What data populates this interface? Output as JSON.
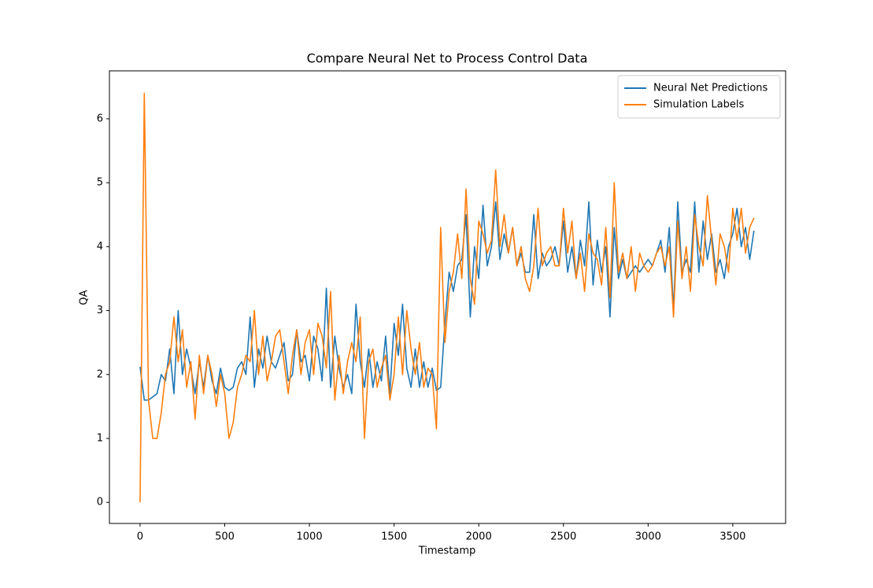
{
  "chart_data": {
    "type": "line",
    "title": "Compare Neural Net to Process Control Data",
    "x_label": "Timestamp",
    "y_label": "QA",
    "x": [
      0,
      25,
      50,
      75,
      100,
      125,
      150,
      175,
      200,
      225,
      250,
      275,
      300,
      325,
      350,
      375,
      400,
      425,
      450,
      475,
      500,
      525,
      550,
      575,
      600,
      625,
      650,
      675,
      700,
      725,
      750,
      775,
      800,
      825,
      850,
      875,
      900,
      925,
      950,
      975,
      1000,
      1025,
      1050,
      1075,
      1100,
      1125,
      1150,
      1175,
      1200,
      1225,
      1250,
      1275,
      1300,
      1325,
      1350,
      1375,
      1400,
      1425,
      1450,
      1475,
      1500,
      1525,
      1550,
      1575,
      1600,
      1625,
      1650,
      1675,
      1700,
      1725,
      1750,
      1775,
      1800,
      1825,
      1850,
      1875,
      1900,
      1925,
      1950,
      1975,
      2000,
      2025,
      2050,
      2075,
      2100,
      2125,
      2150,
      2175,
      2200,
      2225,
      2250,
      2275,
      2300,
      2325,
      2350,
      2375,
      2400,
      2425,
      2450,
      2475,
      2500,
      2525,
      2550,
      2575,
      2600,
      2625,
      2650,
      2675,
      2700,
      2725,
      2750,
      2775,
      2800,
      2825,
      2850,
      2875,
      2900,
      2925,
      2950,
      2975,
      3000,
      3025,
      3050,
      3075,
      3100,
      3125,
      3150,
      3175,
      3200,
      3225,
      3250,
      3275,
      3300,
      3325,
      3350,
      3375,
      3400,
      3425,
      3450,
      3475,
      3500,
      3525,
      3550,
      3575,
      3600,
      3625
    ],
    "series": [
      {
        "name": "Neural Net Predictions",
        "color": "#1f77b4",
        "values": [
          2.12,
          1.6,
          1.6,
          1.65,
          1.7,
          2.0,
          1.9,
          2.4,
          1.7,
          3.0,
          2.0,
          2.4,
          2.1,
          1.7,
          2.2,
          1.8,
          2.3,
          1.9,
          1.7,
          2.1,
          1.8,
          1.75,
          1.8,
          2.1,
          2.2,
          2.0,
          2.9,
          1.8,
          2.4,
          2.1,
          2.6,
          2.2,
          2.1,
          2.3,
          2.5,
          1.9,
          2.0,
          2.7,
          2.2,
          2.3,
          1.9,
          2.6,
          2.4,
          1.9,
          3.35,
          1.8,
          2.6,
          2.1,
          1.8,
          2.0,
          1.7,
          3.1,
          2.2,
          1.8,
          2.4,
          1.8,
          2.2,
          1.9,
          2.6,
          1.7,
          2.8,
          2.3,
          3.1,
          2.1,
          1.8,
          2.4,
          1.8,
          2.2,
          1.8,
          2.1,
          1.75,
          1.8,
          2.8,
          3.6,
          3.3,
          3.7,
          3.8,
          4.5,
          2.9,
          4.0,
          3.5,
          4.65,
          3.7,
          4.0,
          4.7,
          3.8,
          4.2,
          3.9,
          4.3,
          3.7,
          3.9,
          3.6,
          3.6,
          4.5,
          3.5,
          3.9,
          3.7,
          3.8,
          4.0,
          3.7,
          4.4,
          3.6,
          4.0,
          3.5,
          4.1,
          3.7,
          4.7,
          3.4,
          4.1,
          3.6,
          4.0,
          2.9,
          4.3,
          3.5,
          3.8,
          3.5,
          3.6,
          3.7,
          3.6,
          3.7,
          3.8,
          3.7,
          3.9,
          4.1,
          3.6,
          4.3,
          3.0,
          4.7,
          3.6,
          3.8,
          3.6,
          4.7,
          3.6,
          4.4,
          3.8,
          4.2,
          3.6,
          3.8,
          3.5,
          4.0,
          4.2,
          4.6,
          4.0,
          4.3,
          3.8,
          4.25
        ]
      },
      {
        "name": "Simulation Labels",
        "color": "#ff7f0e",
        "values": [
          0.0,
          6.4,
          1.6,
          1.0,
          1.0,
          1.4,
          2.0,
          2.2,
          2.9,
          2.2,
          2.7,
          1.8,
          2.2,
          1.3,
          2.3,
          1.7,
          2.3,
          2.0,
          1.5,
          2.0,
          1.7,
          1.0,
          1.25,
          1.8,
          2.0,
          2.3,
          2.2,
          3.0,
          2.0,
          2.6,
          1.9,
          2.2,
          2.6,
          2.7,
          2.2,
          1.7,
          2.3,
          2.7,
          2.0,
          2.5,
          2.7,
          2.0,
          2.8,
          2.6,
          2.1,
          3.3,
          1.6,
          2.3,
          1.7,
          2.2,
          2.5,
          2.2,
          2.9,
          1.0,
          2.2,
          2.4,
          1.8,
          2.1,
          2.3,
          1.6,
          2.0,
          2.9,
          2.0,
          3.0,
          2.4,
          2.0,
          2.5,
          1.8,
          2.1,
          2.0,
          1.15,
          4.3,
          2.5,
          3.3,
          3.6,
          4.2,
          3.5,
          4.9,
          3.5,
          3.1,
          4.4,
          4.2,
          3.9,
          4.1,
          5.2,
          4.0,
          4.5,
          3.9,
          4.3,
          3.7,
          4.0,
          3.5,
          3.3,
          3.7,
          4.6,
          3.7,
          3.9,
          4.0,
          3.7,
          3.7,
          4.6,
          3.9,
          4.4,
          3.5,
          3.9,
          3.3,
          4.2,
          3.9,
          3.8,
          3.4,
          4.3,
          3.2,
          5.0,
          3.6,
          3.9,
          3.5,
          4.0,
          3.3,
          3.9,
          3.7,
          3.6,
          3.7,
          3.9,
          4.0,
          3.7,
          4.0,
          2.9,
          4.4,
          3.5,
          4.0,
          3.3,
          4.5,
          4.0,
          3.7,
          4.8,
          4.1,
          3.4,
          4.2,
          4.0,
          3.6,
          4.6,
          4.1,
          4.6,
          3.9,
          4.3,
          4.45
        ]
      }
    ],
    "xlim": [
      -181,
      3812
    ],
    "ylim": [
      -0.33,
      6.75
    ],
    "xticks": [
      0,
      500,
      1000,
      1500,
      2000,
      2500,
      3000,
      3500
    ],
    "yticks": [
      0,
      1,
      2,
      3,
      4,
      5,
      6
    ],
    "legend": "upper right"
  }
}
